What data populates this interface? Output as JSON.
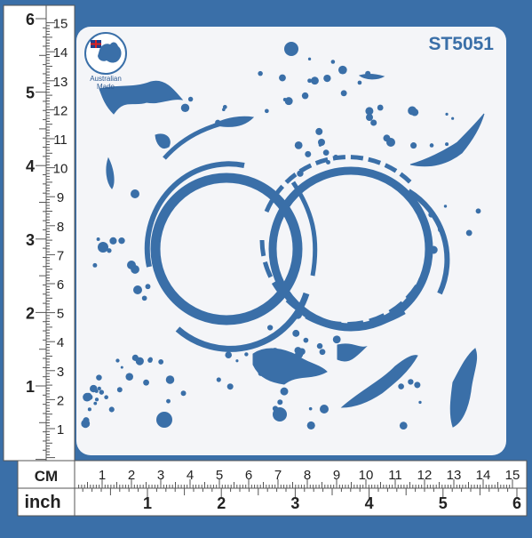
{
  "product_code": "ST5051",
  "logo": {
    "line1": "Australian",
    "line2": "Made"
  },
  "ruler": {
    "cm_label": "CM",
    "inch_label": "inch",
    "cm_marks": [
      "1",
      "2",
      "3",
      "4",
      "5",
      "6",
      "7",
      "8",
      "9",
      "10",
      "11",
      "12",
      "13",
      "14",
      "15"
    ],
    "inch_marks": [
      "1",
      "2",
      "3",
      "4",
      "5",
      "6"
    ]
  },
  "colors": {
    "background": "#3a6fa8",
    "stencil": "#f4f5f8",
    "ruler_face": "#ffffff",
    "product_code_text": "#3a6fa8"
  },
  "icons": [
    "australia-map-icon",
    "hanging-hole-icon"
  ]
}
